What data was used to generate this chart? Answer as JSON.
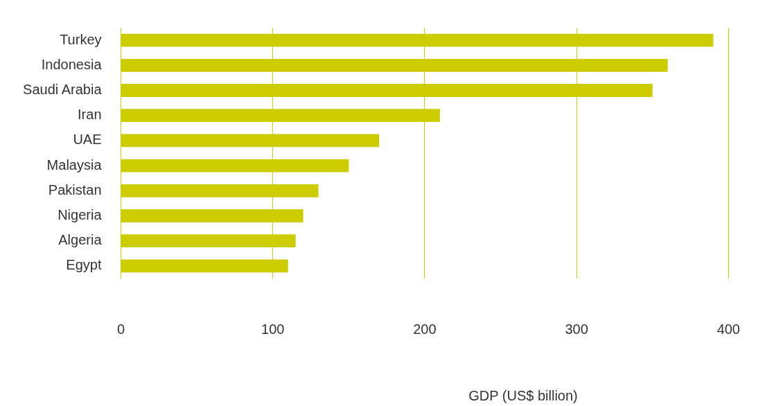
{
  "chart_data": {
    "type": "bar",
    "orientation": "horizontal",
    "categories": [
      "Turkey",
      "Indonesia",
      "Saudi Arabia",
      "Iran",
      "UAE",
      "Malaysia",
      "Pakistan",
      "Nigeria",
      "Algeria",
      "Egypt"
    ],
    "values": [
      390,
      360,
      350,
      210,
      170,
      150,
      130,
      120,
      115,
      110
    ],
    "color": "#cccc00",
    "xlabel": "GDP (US$ billion)",
    "xlim": [
      0,
      400
    ],
    "xticks": [
      0,
      100,
      200,
      300,
      400
    ],
    "grid": "x",
    "legend": false
  }
}
